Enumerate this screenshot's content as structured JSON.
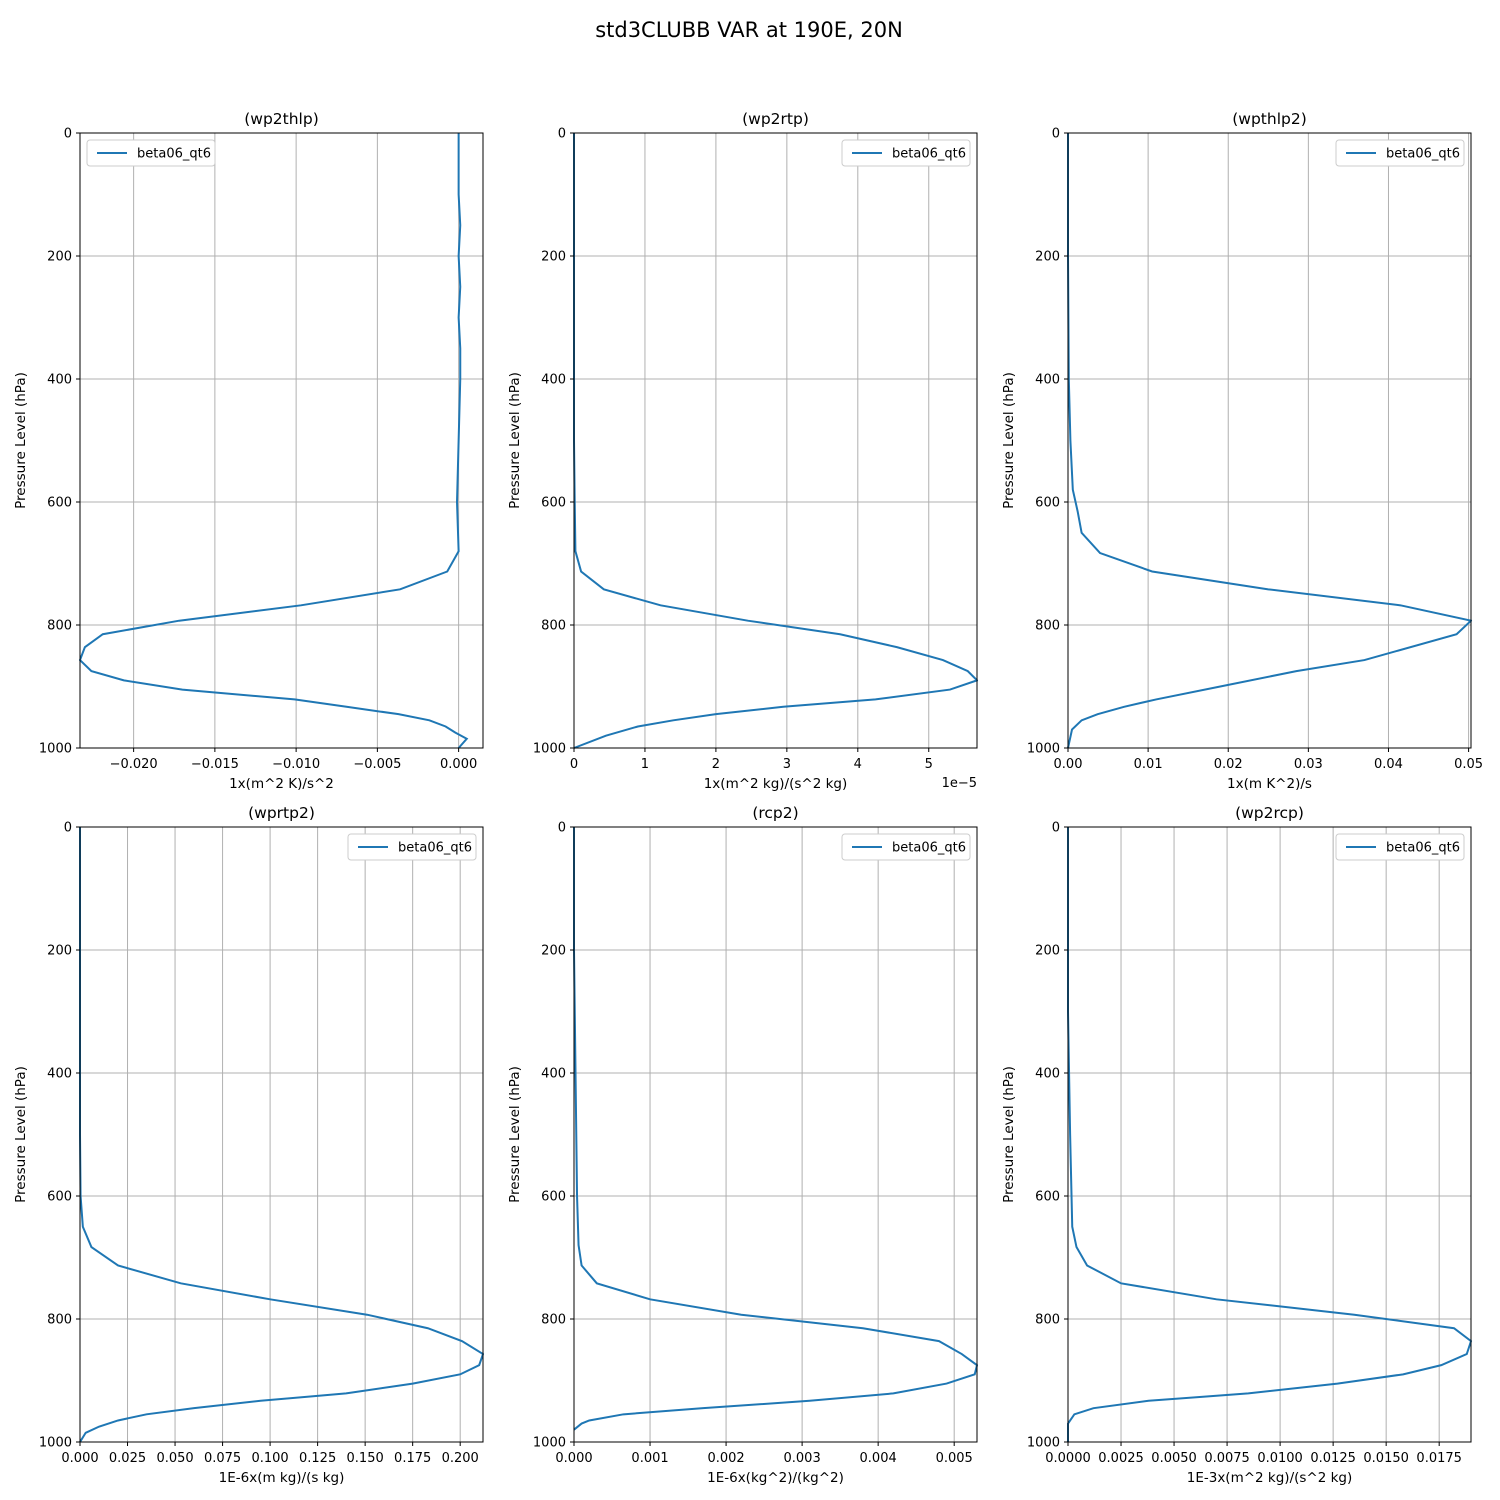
{
  "figure": {
    "title": "std3CLUBB VAR at 190E, 20N"
  },
  "colors": {
    "series": "#1f77b4",
    "grid": "#b0b0b0"
  },
  "chart_data": [
    {
      "type": "line",
      "title": "(wp2thlp)",
      "xlabel": "1x(m^2 K)/s^2",
      "ylabel": "Pressure Level (hPa)",
      "xlim": [
        -0.0233,
        0.0015
      ],
      "ylim": [
        0,
        1000
      ],
      "xticks": [
        -0.02,
        -0.015,
        -0.01,
        -0.005,
        0.0
      ],
      "xtick_labels": [
        "−0.020",
        "−0.015",
        "−0.010",
        "−0.005",
        "0.000"
      ],
      "yticks": [
        0,
        200,
        400,
        600,
        800,
        1000
      ],
      "ytick_labels": [
        "0",
        "200",
        "400",
        "600",
        "800",
        "1000"
      ],
      "offset_text": "",
      "legend": {
        "entries": [
          "beta06_qt6"
        ],
        "loc": "upper left"
      },
      "series": [
        {
          "name": "beta06_qt6",
          "x": [
            0.0,
            0.0,
            0.0001,
            0.0,
            0.0001,
            0.0,
            0.0001,
            0.0001,
            0.0,
            -0.0001,
            0.0,
            -0.0007,
            -0.0036,
            -0.0097,
            -0.0172,
            -0.0219,
            -0.023,
            -0.0233,
            -0.0226,
            -0.0206,
            -0.017,
            -0.0101,
            -0.0069,
            -0.0037,
            -0.0018,
            -0.0008,
            -0.0002,
            0.0005,
            0.0
          ],
          "y": [
            0,
            100,
            150,
            200,
            250,
            300,
            350,
            400,
            500,
            600,
            680,
            713,
            742,
            768,
            793,
            815,
            836,
            857,
            875,
            890,
            905,
            921,
            933,
            945,
            955,
            965,
            975,
            985,
            1000
          ]
        }
      ]
    },
    {
      "type": "line",
      "title": "(wp2rtp)",
      "xlabel": "1x(m^2 kg)/(s^2 kg)",
      "ylabel": "Pressure Level (hPa)",
      "xlim": [
        0,
        5.68
      ],
      "ylim": [
        0,
        1000
      ],
      "xticks": [
        0,
        1,
        2,
        3,
        4,
        5
      ],
      "xtick_labels": [
        "0",
        "1",
        "2",
        "3",
        "4",
        "5"
      ],
      "yticks": [
        0,
        200,
        400,
        600,
        800,
        1000
      ],
      "ytick_labels": [
        "0",
        "200",
        "400",
        "600",
        "800",
        "1000"
      ],
      "offset_text": "1e−5",
      "legend": {
        "entries": [
          "beta06_qt6"
        ],
        "loc": "upper right"
      },
      "series": [
        {
          "name": "beta06_qt6",
          "x": [
            0.0,
            0.0,
            0.0,
            0.01,
            0.02,
            0.1,
            0.42,
            1.22,
            2.45,
            3.75,
            4.55,
            5.2,
            5.55,
            5.68,
            5.3,
            4.25,
            2.95,
            2.0,
            1.4,
            0.9,
            0.45,
            0.0
          ],
          "y": [
            0,
            300,
            500,
            600,
            680,
            713,
            742,
            768,
            793,
            815,
            836,
            857,
            875,
            890,
            905,
            921,
            933,
            945,
            955,
            965,
            980,
            1000
          ]
        }
      ]
    },
    {
      "type": "line",
      "title": "(wpthlp2)",
      "xlabel": "1x(m K^2)/s",
      "ylabel": "Pressure Level (hPa)",
      "xlim": [
        0,
        0.0503
      ],
      "ylim": [
        0,
        1000
      ],
      "xticks": [
        0.0,
        0.01,
        0.02,
        0.03,
        0.04,
        0.05
      ],
      "xtick_labels": [
        "0.00",
        "0.01",
        "0.02",
        "0.03",
        "0.04",
        "0.05"
      ],
      "yticks": [
        0,
        200,
        400,
        600,
        800,
        1000
      ],
      "ytick_labels": [
        "0",
        "200",
        "400",
        "600",
        "800",
        "1000"
      ],
      "offset_text": "",
      "legend": {
        "entries": [
          "beta06_qt6"
        ],
        "loc": "upper right"
      },
      "series": [
        {
          "name": "beta06_qt6",
          "x": [
            0.0,
            0.0,
            0.0001,
            0.0003,
            0.0006,
            0.0012,
            0.0017,
            0.004,
            0.0105,
            0.025,
            0.0415,
            0.0503,
            0.0485,
            0.037,
            0.0285,
            0.019,
            0.011,
            0.007,
            0.0037,
            0.0017,
            0.0005,
            0.0
          ],
          "y": [
            0,
            200,
            400,
            500,
            580,
            615,
            650,
            683,
            713,
            742,
            768,
            793,
            815,
            857,
            875,
            900,
            921,
            933,
            945,
            955,
            970,
            1000
          ]
        }
      ]
    },
    {
      "type": "line",
      "title": "(wprtp2)",
      "xlabel": "1E-6x(m kg)/(s kg)",
      "ylabel": "Pressure Level (hPa)",
      "xlim": [
        0,
        0.212
      ],
      "ylim": [
        0,
        1000
      ],
      "xticks": [
        0.0,
        0.025,
        0.05,
        0.075,
        0.1,
        0.125,
        0.15,
        0.175,
        0.2
      ],
      "xtick_labels": [
        "0.000",
        "0.025",
        "0.050",
        "0.075",
        "0.100",
        "0.125",
        "0.150",
        "0.175",
        "0.200"
      ],
      "yticks": [
        0,
        200,
        400,
        600,
        800,
        1000
      ],
      "ytick_labels": [
        "0",
        "200",
        "400",
        "600",
        "800",
        "1000"
      ],
      "offset_text": "",
      "legend": {
        "entries": [
          "beta06_qt6"
        ],
        "loc": "upper right"
      },
      "series": [
        {
          "name": "beta06_qt6",
          "x": [
            0.0,
            0.0,
            0.0003,
            0.0015,
            0.006,
            0.02,
            0.053,
            0.1,
            0.151,
            0.183,
            0.201,
            0.212,
            0.21,
            0.2,
            0.175,
            0.14,
            0.095,
            0.06,
            0.035,
            0.02,
            0.01,
            0.003,
            0.0
          ],
          "y": [
            0,
            500,
            600,
            650,
            683,
            713,
            742,
            768,
            793,
            815,
            836,
            857,
            875,
            890,
            905,
            921,
            933,
            945,
            955,
            965,
            975,
            985,
            1000
          ]
        }
      ]
    },
    {
      "type": "line",
      "title": "(rcp2)",
      "xlabel": "1E-6x(kg^2)/(kg^2)",
      "ylabel": "Pressure Level (hPa)",
      "xlim": [
        0,
        0.0053
      ],
      "ylim": [
        0,
        1000
      ],
      "xticks": [
        0.0,
        0.001,
        0.002,
        0.003,
        0.004,
        0.005
      ],
      "xtick_labels": [
        "0.000",
        "0.001",
        "0.002",
        "0.003",
        "0.004",
        "0.005"
      ],
      "yticks": [
        0,
        200,
        400,
        600,
        800,
        1000
      ],
      "ytick_labels": [
        "0",
        "200",
        "400",
        "600",
        "800",
        "1000"
      ],
      "offset_text": "",
      "legend": {
        "entries": [
          "beta06_qt6"
        ],
        "loc": "upper right"
      },
      "series": [
        {
          "name": "beta06_qt6",
          "x": [
            0.0,
            0.0,
            2e-05,
            4e-05,
            6e-05,
            0.0001,
            0.0003,
            0.001,
            0.0022,
            0.0038,
            0.0048,
            0.0051,
            0.0053,
            0.00527,
            0.0049,
            0.0042,
            0.0031,
            0.0017,
            0.00065,
            0.0002,
            0.0001,
            0.0
          ],
          "y": [
            0,
            200,
            400,
            600,
            680,
            713,
            742,
            768,
            793,
            815,
            836,
            857,
            875,
            890,
            905,
            921,
            933,
            945,
            955,
            965,
            970,
            980
          ]
        }
      ]
    },
    {
      "type": "line",
      "title": "(wp2rcp)",
      "xlabel": "1E-3x(m^2 kg)/(s^2 kg)",
      "ylabel": "Pressure Level (hPa)",
      "xlim": [
        0,
        0.019
      ],
      "ylim": [
        0,
        1000
      ],
      "xticks": [
        0.0,
        0.0025,
        0.005,
        0.0075,
        0.01,
        0.0125,
        0.015,
        0.0175
      ],
      "xtick_labels": [
        "0.0000",
        "0.0025",
        "0.0050",
        "0.0075",
        "0.0100",
        "0.0125",
        "0.0150",
        "0.0175"
      ],
      "yticks": [
        0,
        200,
        400,
        600,
        800,
        1000
      ],
      "ytick_labels": [
        "0",
        "200",
        "400",
        "600",
        "800",
        "1000"
      ],
      "offset_text": "",
      "legend": {
        "entries": [
          "beta06_qt6"
        ],
        "loc": "upper right"
      },
      "series": [
        {
          "name": "beta06_qt6",
          "x": [
            0.0,
            0.0,
            0.0001,
            0.0002,
            0.0004,
            0.0009,
            0.0025,
            0.007,
            0.0135,
            0.0182,
            0.019,
            0.0188,
            0.0176,
            0.0158,
            0.0127,
            0.0085,
            0.0038,
            0.0012,
            0.0003,
            0.0,
            0.0
          ],
          "y": [
            0,
            300,
            500,
            650,
            683,
            713,
            742,
            768,
            793,
            815,
            836,
            857,
            875,
            890,
            905,
            921,
            933,
            945,
            955,
            970,
            1000
          ]
        }
      ]
    }
  ]
}
